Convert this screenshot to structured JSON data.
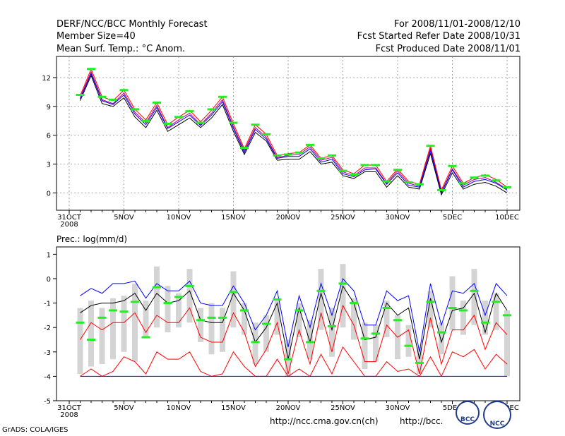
{
  "header": {
    "title": "DERF/NCC/BCC Monthly Forecast",
    "member_size": "Member Size=40",
    "variable": "Mean Surf. Temp.: °C Anom.",
    "period": "For 2008/11/01-2008/12/10",
    "started": "Fcst Started Refer Date 2008/10/31",
    "produced": "Fcst Produced Date 2008/11/01"
  },
  "footer": {
    "grads": "GrADS: COLA/IGES",
    "url1": "http://ncc.cma.gov.cn(ch)",
    "url2": "http://bcc.",
    "logo1": "BCC",
    "logo2": "NCC"
  },
  "colors": {
    "ensemble": "#ff0000",
    "mean": "#000000",
    "upper": "#0000ff",
    "obs": "#22ee22",
    "box": "#d4d4d4",
    "member": "#b0007a"
  },
  "chart_data": [
    {
      "type": "line",
      "title": "Mean Surf. Temp.: °C Anom.",
      "xlabel": "",
      "ylabel": "",
      "x_range_days": [
        0,
        40
      ],
      "x_tick_days": [
        0,
        5,
        10,
        15,
        20,
        25,
        30,
        35,
        40
      ],
      "x_tick_labels": [
        "31OCT",
        "5NOV",
        "10NOV",
        "15NOV",
        "20NOV",
        "25NOV",
        "30NOV",
        "5DEC",
        "10DEC"
      ],
      "x_year_label": "2008",
      "ylim": [
        -1.8,
        14.2
      ],
      "y_ticks": [
        0,
        3,
        6,
        9,
        12
      ],
      "grid": true,
      "series": [
        {
          "name": "ensemble-max",
          "values": [
            10.1,
            12.9,
            10.0,
            9.6,
            10.7,
            8.7,
            7.6,
            9.4,
            7.1,
            7.9,
            8.6,
            7.4,
            8.6,
            10.0,
            7.2,
            4.6,
            7.1,
            6.1,
            3.9,
            4.1,
            4.2,
            5.0,
            3.6,
            3.9,
            2.4,
            2.0,
            2.9,
            2.9,
            1.2,
            2.5,
            1.2,
            0.9,
            4.9,
            0.3,
            2.8,
            1.0,
            1.6,
            1.9,
            1.4,
            0.6
          ]
        },
        {
          "name": "ensemble-a",
          "values": [
            9.9,
            12.6,
            9.7,
            9.3,
            10.4,
            8.4,
            7.3,
            9.1,
            6.8,
            7.6,
            8.3,
            7.1,
            8.3,
            9.7,
            6.9,
            4.4,
            6.8,
            5.8,
            3.7,
            3.9,
            4.0,
            4.8,
            3.4,
            3.7,
            2.2,
            1.8,
            2.6,
            2.6,
            1.0,
            2.3,
            1.0,
            0.7,
            4.6,
            0.1,
            2.5,
            0.8,
            1.4,
            1.6,
            1.1,
            0.4
          ]
        },
        {
          "name": "ensemble-b",
          "values": [
            9.8,
            12.4,
            9.6,
            9.2,
            10.2,
            8.2,
            7.1,
            8.9,
            6.7,
            7.4,
            8.1,
            7.0,
            8.1,
            9.5,
            6.7,
            4.2,
            6.6,
            5.6,
            3.6,
            3.8,
            3.8,
            4.6,
            3.2,
            3.5,
            2.0,
            1.7,
            2.4,
            2.5,
            0.9,
            2.1,
            0.8,
            0.6,
            4.4,
            0.0,
            2.4,
            0.6,
            1.2,
            1.4,
            1.0,
            0.3
          ]
        },
        {
          "name": "ensemble-mean",
          "values": [
            9.6,
            12.2,
            9.3,
            9.0,
            9.9,
            7.9,
            6.8,
            8.6,
            6.4,
            7.1,
            7.8,
            6.8,
            7.8,
            9.2,
            6.4,
            4.0,
            6.3,
            5.4,
            3.4,
            3.5,
            3.5,
            4.3,
            3.0,
            3.2,
            1.8,
            1.5,
            2.2,
            2.2,
            0.6,
            1.8,
            0.6,
            0.4,
            4.1,
            -0.2,
            2.1,
            0.4,
            0.9,
            1.1,
            0.7,
            0.0
          ]
        }
      ],
      "observed": [
        10.2,
        12.9,
        10.0,
        9.7,
        10.7,
        8.7,
        7.5,
        9.4,
        7.2,
        7.9,
        8.5,
        7.3,
        8.7,
        10.0,
        7.3,
        4.7,
        7.1,
        6.1,
        3.9,
        4.0,
        4.2,
        5.0,
        3.6,
        3.9,
        2.3,
        1.9,
        2.9,
        2.9,
        1.2,
        2.4,
        1.1,
        0.9,
        4.9,
        0.3,
        2.8,
        1.0,
        1.6,
        1.8,
        1.3,
        0.6
      ]
    },
    {
      "type": "box",
      "title": "Prec.: log(mm/d)",
      "x_range_days": [
        0,
        40
      ],
      "x_tick_days": [
        0,
        5,
        10,
        15,
        20,
        25,
        30,
        35,
        40
      ],
      "x_tick_labels": [
        "31OCT",
        "5NOV",
        "10NOV",
        "15NOV",
        "20NOV",
        "25NOV",
        "30NOV",
        "5DEC",
        "10DEC"
      ],
      "x_year_label": "2008",
      "ylim": [
        -5,
        1.3
      ],
      "y_ticks": [
        -5,
        -4,
        -3,
        -2,
        -1,
        0,
        1
      ],
      "boxes": [
        {
          "lo": -3.9,
          "hi": -1.2
        },
        {
          "lo": -3.6,
          "hi": -0.9
        },
        {
          "lo": -3.5,
          "hi": -1.2
        },
        {
          "lo": -3.3,
          "hi": -0.8
        },
        {
          "lo": -3.0,
          "hi": -0.7
        },
        {
          "lo": -3.4,
          "hi": -0.2
        },
        {
          "lo": -2.4,
          "hi": -0.9
        },
        {
          "lo": -2.0,
          "hi": 0.5
        },
        {
          "lo": -2.2,
          "hi": -0.3
        },
        {
          "lo": -2.0,
          "hi": -0.6
        },
        {
          "lo": -1.8,
          "hi": 0.4
        },
        {
          "lo": -2.6,
          "hi": -1.2
        },
        {
          "lo": -3.1,
          "hi": -1.0
        },
        {
          "lo": -3.0,
          "hi": -1.2
        },
        {
          "lo": -2.0,
          "hi": 0.3
        },
        {
          "lo": -2.3,
          "hi": -1.0
        },
        {
          "lo": -3.5,
          "hi": -1.8
        },
        {
          "lo": -3.0,
          "hi": -1.5
        },
        {
          "lo": -2.3,
          "hi": -0.9
        },
        {
          "lo": -4.0,
          "hi": -2.5
        },
        {
          "lo": -2.4,
          "hi": -1.0
        },
        {
          "lo": -3.3,
          "hi": -1.7
        },
        {
          "lo": -2.1,
          "hi": 0.4
        },
        {
          "lo": -3.2,
          "hi": -1.2
        },
        {
          "lo": -2.0,
          "hi": 0.6
        },
        {
          "lo": -2.5,
          "hi": -0.8
        },
        {
          "lo": -3.7,
          "hi": -1.8
        },
        {
          "lo": -3.4,
          "hi": -1.9
        },
        {
          "lo": -2.4,
          "hi": -0.9
        },
        {
          "lo": -3.3,
          "hi": -1.5
        },
        {
          "lo": -3.2,
          "hi": -1.9
        },
        {
          "lo": -3.9,
          "hi": -2.8
        },
        {
          "lo": -2.0,
          "hi": -0.5
        },
        {
          "lo": -3.1,
          "hi": -1.8
        },
        {
          "lo": -2.1,
          "hi": 0.1
        },
        {
          "lo": -2.3,
          "hi": -0.9
        },
        {
          "lo": -1.9,
          "hi": 0.4
        },
        {
          "lo": -2.3,
          "hi": -0.9
        },
        {
          "lo": -2.1,
          "hi": -0.6
        },
        {
          "lo": -4.0,
          "hi": -1.3
        }
      ],
      "series": [
        {
          "name": "member-max",
          "color": "blue",
          "values": [
            -0.7,
            -0.4,
            -0.6,
            -0.2,
            -0.2,
            -0.1,
            -0.8,
            -0.2,
            -0.5,
            -0.5,
            -0.1,
            -1.0,
            -1.1,
            -1.1,
            -0.3,
            -1.0,
            -2.1,
            -1.5,
            -0.5,
            -2.8,
            -0.7,
            -2.0,
            -0.2,
            -1.5,
            0.0,
            -0.5,
            -1.9,
            -1.9,
            -0.5,
            -0.9,
            -0.7,
            -3.0,
            -0.2,
            -1.9,
            -0.5,
            -0.6,
            -0.2,
            -1.5,
            -0.2,
            -0.7
          ]
        },
        {
          "name": "member-upper",
          "color": "black",
          "values": [
            -1.4,
            -1.1,
            -1.0,
            -1.0,
            -0.9,
            -0.6,
            -1.3,
            -0.6,
            -1.0,
            -0.9,
            -0.5,
            -1.7,
            -1.8,
            -1.8,
            -0.6,
            -1.3,
            -2.6,
            -2.0,
            -1.0,
            -3.3,
            -1.2,
            -2.6,
            -0.6,
            -2.1,
            -0.3,
            -1.0,
            -2.5,
            -2.4,
            -1.0,
            -1.5,
            -1.2,
            -3.3,
            -0.8,
            -2.6,
            -1.3,
            -1.2,
            -0.6,
            -2.2,
            -0.6,
            -1.3
          ]
        },
        {
          "name": "member-mid",
          "color": "red",
          "values": [
            -2.5,
            -1.8,
            -2.1,
            -1.8,
            -1.8,
            -1.4,
            -2.2,
            -1.5,
            -1.8,
            -1.8,
            -1.2,
            -2.4,
            -2.6,
            -2.6,
            -1.4,
            -2.2,
            -3.6,
            -2.9,
            -1.8,
            -3.9,
            -2.1,
            -3.5,
            -1.4,
            -3.0,
            -1.1,
            -1.9,
            -3.4,
            -3.4,
            -1.9,
            -2.4,
            -2.1,
            -3.9,
            -1.6,
            -3.5,
            -2.1,
            -2.1,
            -1.5,
            -2.9,
            -1.8,
            -2.3
          ]
        },
        {
          "name": "member-low",
          "color": "red",
          "values": [
            -4.0,
            -3.7,
            -4.0,
            -3.8,
            -3.2,
            -3.4,
            -3.9,
            -3.0,
            -3.3,
            -3.3,
            -3.0,
            -3.8,
            -4.0,
            -3.9,
            -3.0,
            -3.6,
            -4.0,
            -4.0,
            -3.3,
            -4.0,
            -3.7,
            -4.0,
            -3.1,
            -3.9,
            -2.8,
            -3.4,
            -4.0,
            -4.0,
            -3.4,
            -3.8,
            -3.7,
            -4.0,
            -3.2,
            -4.0,
            -3.0,
            -3.2,
            -2.9,
            -3.7,
            -3.1,
            -3.5
          ]
        },
        {
          "name": "member-min",
          "color": "blue",
          "values": [
            -4.0,
            -4.0,
            -4.0,
            -4.0,
            -4.0,
            -4.0,
            -4.0,
            -4.0,
            -4.0,
            -4.0,
            -4.0,
            -4.0,
            -4.0,
            -4.0,
            -4.0,
            -4.0,
            -4.0,
            -4.0,
            -4.0,
            -4.0,
            -4.0,
            -4.0,
            -4.0,
            -4.0,
            -4.0,
            -4.0,
            -4.0,
            -4.0,
            -4.0,
            -4.0,
            -4.0,
            -4.0,
            -4.0,
            -4.0,
            -4.0,
            -4.0,
            -4.0,
            -4.0,
            -4.0,
            -4.0
          ]
        }
      ],
      "observed": [
        -1.8,
        -2.5,
        -1.6,
        -1.3,
        -1.35,
        -0.95,
        -2.4,
        -0.35,
        -1.0,
        -0.75,
        -0.3,
        -1.7,
        -1.6,
        -1.6,
        -0.55,
        -1.3,
        -2.6,
        -1.85,
        -0.85,
        -3.3,
        -1.3,
        -2.6,
        -0.5,
        -1.95,
        -0.2,
        -1.0,
        -2.45,
        -2.25,
        -1.2,
        -1.7,
        -2.75,
        -3.45,
        -0.95,
        -2.2,
        -1.2,
        -1.3,
        -0.5,
        -1.8,
        -0.95,
        -1.5
      ]
    }
  ]
}
